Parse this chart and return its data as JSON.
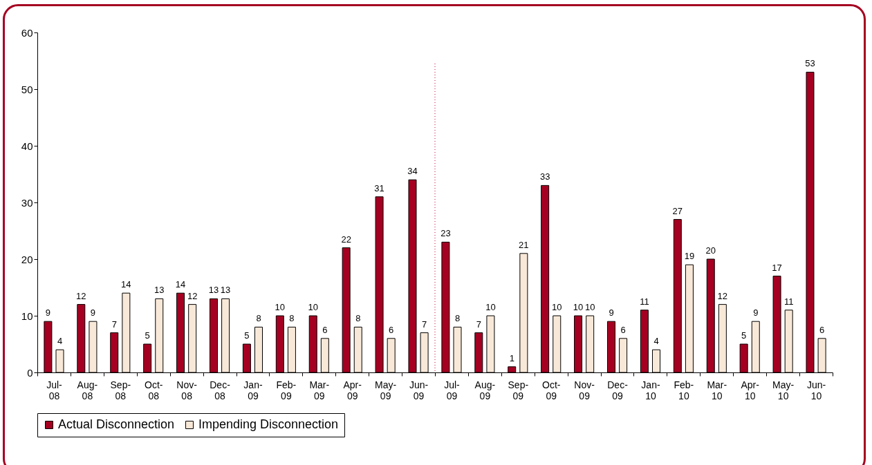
{
  "chart_data": {
    "type": "bar",
    "categories": [
      "Jul-08",
      "Aug-08",
      "Sep-08",
      "Oct-08",
      "Nov-08",
      "Dec-08",
      "Jan-09",
      "Feb-09",
      "Mar-09",
      "Apr-09",
      "May-09",
      "Jun-09",
      "Jul-09",
      "Aug-09",
      "Sep-09",
      "Oct-09",
      "Nov-09",
      "Dec-09",
      "Jan-10",
      "Feb-10",
      "Mar-10",
      "Apr-10",
      "May-10",
      "Jun-10"
    ],
    "series": [
      {
        "name": "Actual Disconnection",
        "color": "#a50021",
        "values": [
          9,
          12,
          7,
          5,
          14,
          13,
          5,
          10,
          10,
          22,
          31,
          34,
          23,
          7,
          1,
          33,
          10,
          9,
          11,
          27,
          20,
          5,
          17,
          53
        ]
      },
      {
        "name": "Impending Disconnection",
        "color": "#f8e8d8",
        "values": [
          4,
          9,
          14,
          13,
          12,
          13,
          8,
          8,
          6,
          8,
          6,
          7,
          8,
          10,
          21,
          10,
          10,
          6,
          4,
          19,
          12,
          9,
          11,
          6
        ]
      }
    ],
    "ylim": [
      0,
      60
    ],
    "yticks": [
      0,
      10,
      20,
      30,
      40,
      50,
      60
    ],
    "grid": false,
    "legend": "bottom",
    "data_labels": true,
    "ref_lines": [
      {
        "axis": "x",
        "value": "Jul-09",
        "color": "#c0002a",
        "line_style": "dotted"
      }
    ]
  }
}
